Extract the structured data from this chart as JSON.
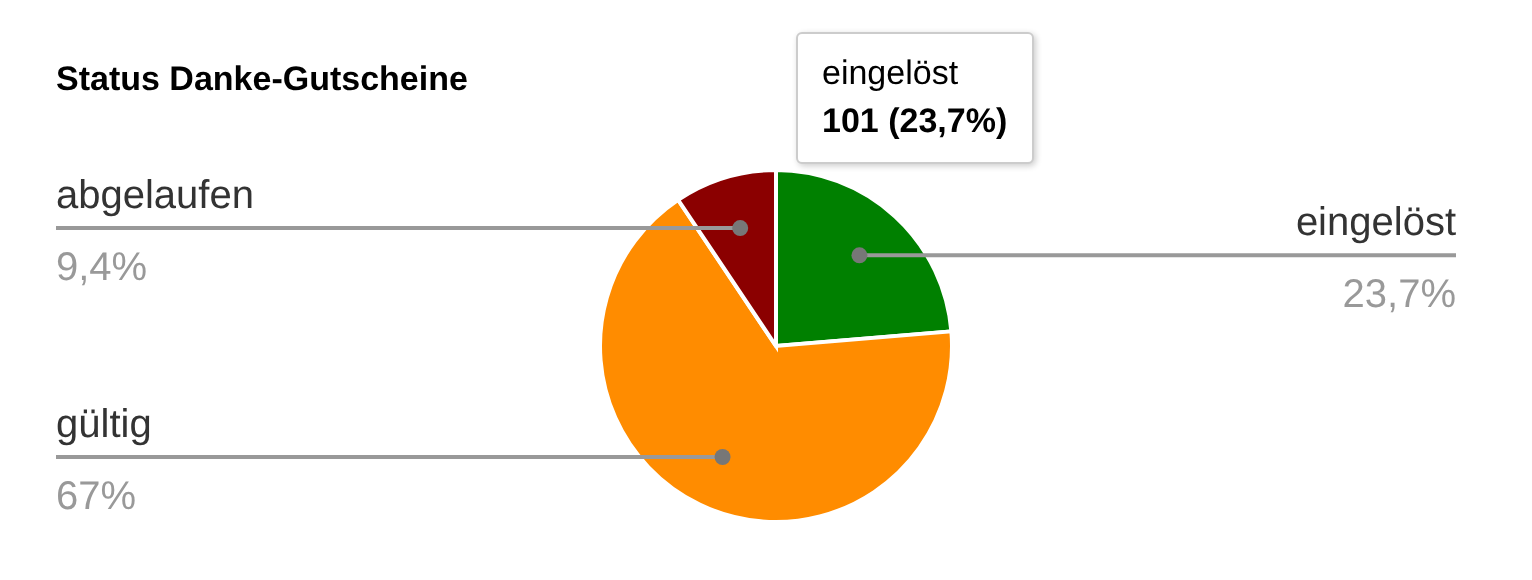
{
  "chart_data": {
    "type": "pie",
    "title": "Status Danke-Gutscheine",
    "categories": [
      "eingelöst",
      "gültig",
      "abgelaufen"
    ],
    "values": [
      23.7,
      67,
      9.4
    ],
    "colors": [
      "#008000",
      "#ff8c00",
      "#8b0000"
    ],
    "value_labels": [
      "23,7%",
      "67%",
      "9,4%"
    ],
    "annotations": [
      "eingelöst",
      "101 (23,7%)"
    ]
  }
}
